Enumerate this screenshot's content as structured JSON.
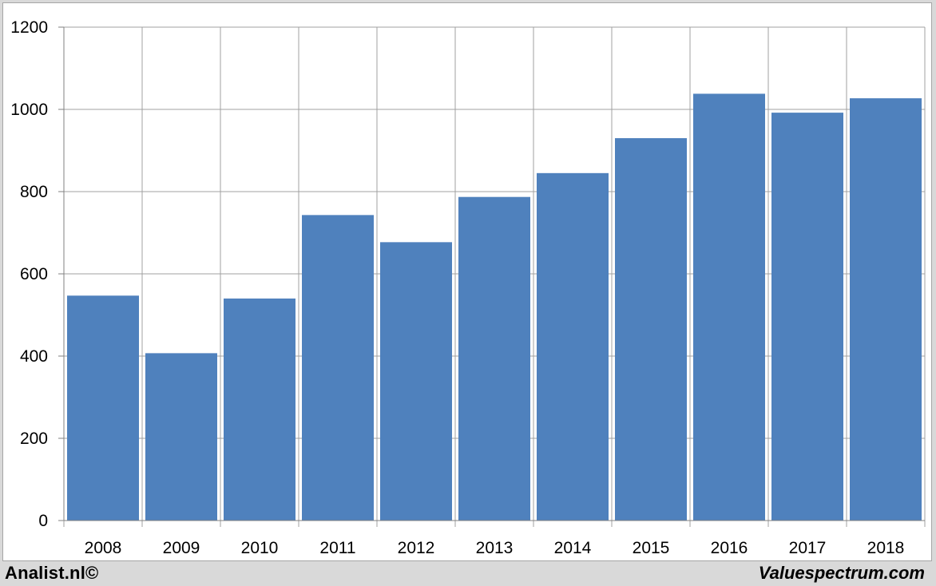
{
  "chart_data": {
    "type": "bar",
    "categories": [
      "2008",
      "2009",
      "2010",
      "2011",
      "2012",
      "2013",
      "2014",
      "2015",
      "2016",
      "2017",
      "2018"
    ],
    "values": [
      547,
      407,
      540,
      743,
      677,
      787,
      845,
      930,
      1038,
      992,
      1027
    ],
    "yticks": [
      0,
      200,
      400,
      600,
      800,
      1000,
      1200
    ],
    "ylim": [
      0,
      1200
    ],
    "grid": true,
    "bar_color": "#4f81bd",
    "grid_color": "#a0a0a0"
  },
  "footer": {
    "left": "Analist.nl©",
    "right": "Valuespectrum.com"
  }
}
